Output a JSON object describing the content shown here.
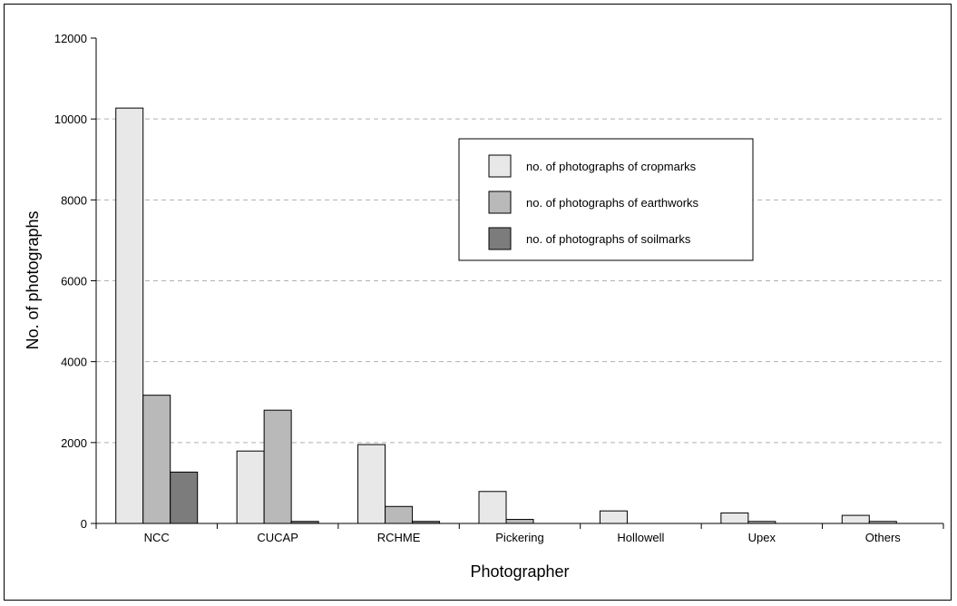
{
  "chart_data": {
    "type": "bar",
    "title": "",
    "xlabel": "Photographer",
    "ylabel": "No. of photographs",
    "ylim": [
      0,
      12000
    ],
    "yticks": [
      "0",
      "2000",
      "4000",
      "6000",
      "8000",
      "10000",
      "12000"
    ],
    "grid": "horizontal dashed",
    "legend_position": "upper-right (inside plot)",
    "categories": [
      "NCC",
      "CUCAP",
      "RCHME",
      "Pickering",
      "Hollowell",
      "Upex",
      "Others"
    ],
    "series": [
      {
        "name": "no. of photographs of cropmarks",
        "color": "#e8e8e8",
        "values": [
          10270,
          1790,
          1950,
          790,
          310,
          260,
          200
        ]
      },
      {
        "name": "no. of photographs of earthworks",
        "color": "#b9b9b9",
        "values": [
          3170,
          2800,
          420,
          100,
          0,
          50,
          50
        ]
      },
      {
        "name": "no. of photographs of soilmarks",
        "color": "#7c7c7c",
        "values": [
          1270,
          50,
          50,
          0,
          0,
          0,
          0
        ]
      }
    ]
  }
}
